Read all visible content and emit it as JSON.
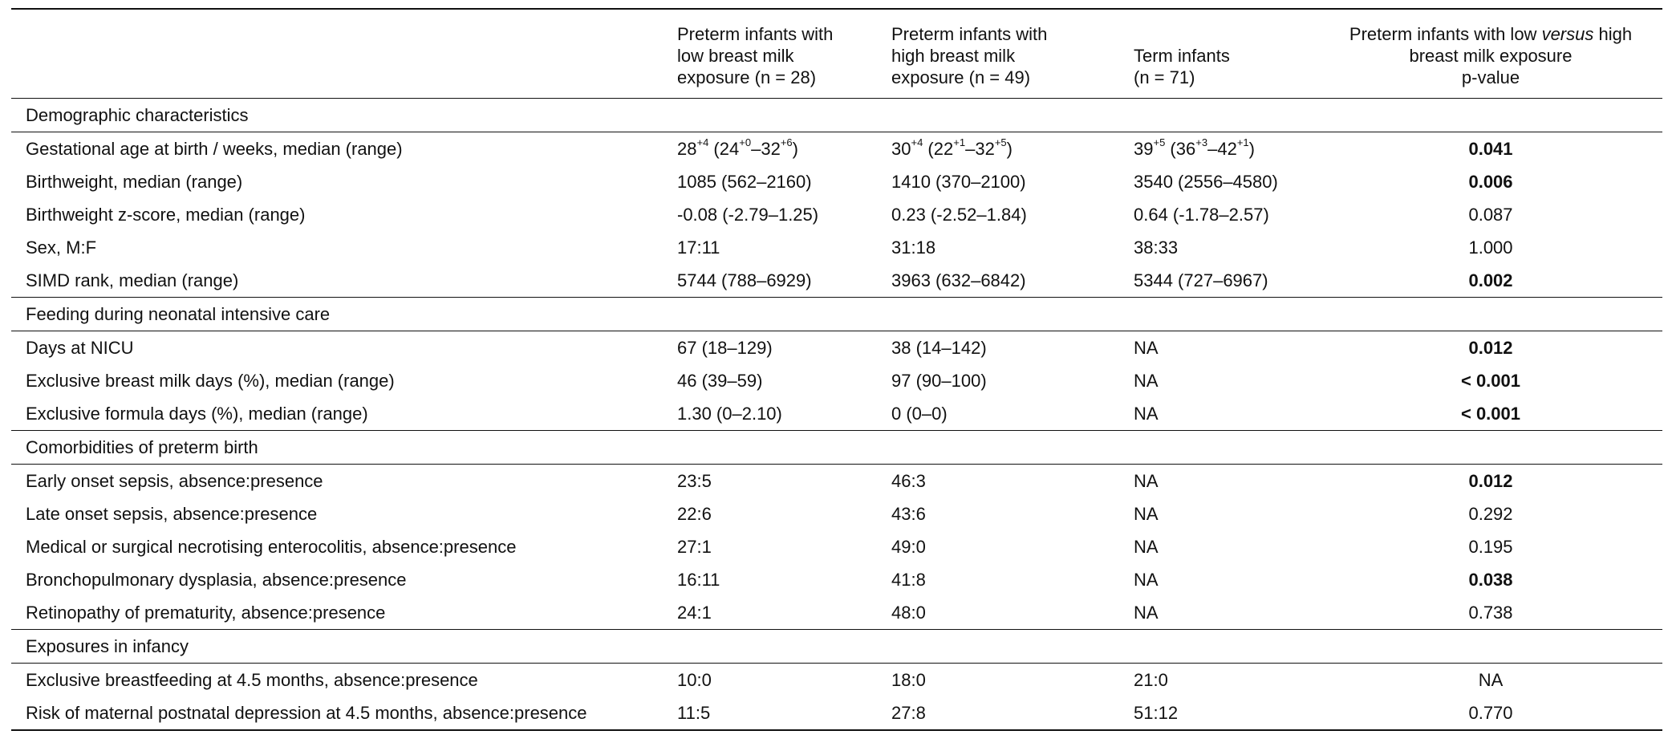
{
  "headers": {
    "col1": [
      "Preterm infants with",
      "low breast milk",
      "exposure (n = 28)"
    ],
    "col2": [
      "Preterm infants with",
      "high breast milk",
      "exposure (n = 49)"
    ],
    "col3": [
      "Term infants",
      "(n = 71)"
    ],
    "col4_pre": "Preterm infants with low ",
    "col4_italic": "versus",
    "col4_post": " high",
    "col4_line2": "breast milk exposure",
    "col4_line3": "p-value"
  },
  "sections": [
    {
      "title": "Demographic characteristics",
      "rows": [
        {
          "label": "Gestational age at birth / weeks, median (range)",
          "ga": true,
          "low": {
            "a": "28",
            "a_sup": "+4",
            "b": "24",
            "b_sup": "+0",
            "c": "32",
            "c_sup": "+6"
          },
          "high": {
            "a": "30",
            "a_sup": "+4",
            "b": "22",
            "b_sup": "+1",
            "c": "32",
            "c_sup": "+5"
          },
          "term": {
            "a": "39",
            "a_sup": "+5",
            "b": "36",
            "b_sup": "+3",
            "c": "42",
            "c_sup": "+1"
          },
          "p": "0.041",
          "bold": true
        },
        {
          "label": "Birthweight, median (range)",
          "low": "1085 (562–2160)",
          "high": "1410 (370–2100)",
          "term": "3540 (2556–4580)",
          "p": "0.006",
          "bold": true
        },
        {
          "label": "Birthweight z-score, median (range)",
          "low": "-0.08 (-2.79–1.25)",
          "high": "0.23 (-2.52–1.84)",
          "term": "0.64 (-1.78–2.57)",
          "p": "0.087",
          "bold": false
        },
        {
          "label": "Sex, M:F",
          "low": "17:11",
          "high": "31:18",
          "term": "38:33",
          "p": "1.000",
          "bold": false
        },
        {
          "label": "SIMD rank, median (range)",
          "low": "5744 (788–6929)",
          "high": "3963 (632–6842)",
          "term": "5344 (727–6967)",
          "p": "0.002",
          "bold": true
        }
      ]
    },
    {
      "title": "Feeding during neonatal intensive care",
      "rows": [
        {
          "label": "Days at NICU",
          "low": "67 (18–129)",
          "high": "38 (14–142)",
          "term": "NA",
          "p": "0.012",
          "bold": true
        },
        {
          "label": "Exclusive breast milk days (%), median (range)",
          "low": "46 (39–59)",
          "high": "97 (90–100)",
          "term": "NA",
          "p": "< 0.001",
          "bold": true
        },
        {
          "label": "Exclusive formula days (%), median (range)",
          "low": "1.30 (0–2.10)",
          "high": "0 (0–0)",
          "term": "NA",
          "p": "< 0.001",
          "bold": true
        }
      ]
    },
    {
      "title": "Comorbidities of preterm birth",
      "rows": [
        {
          "label": "Early onset sepsis, absence:presence",
          "low": "23:5",
          "high": "46:3",
          "term": "NA",
          "p": "0.012",
          "bold": true
        },
        {
          "label": "Late onset sepsis, absence:presence",
          "low": "22:6",
          "high": "43:6",
          "term": "NA",
          "p": "0.292",
          "bold": false
        },
        {
          "label": "Medical or surgical necrotising enterocolitis, absence:presence",
          "low": "27:1",
          "high": "49:0",
          "term": "NA",
          "p": "0.195",
          "bold": false
        },
        {
          "label": "Bronchopulmonary dysplasia, absence:presence",
          "low": "16:11",
          "high": "41:8",
          "term": "NA",
          "p": "0.038",
          "bold": true
        },
        {
          "label": "Retinopathy of prematurity, absence:presence",
          "low": "24:1",
          "high": "48:0",
          "term": "NA",
          "p": "0.738",
          "bold": false
        }
      ]
    },
    {
      "title": "Exposures in infancy",
      "rows": [
        {
          "label": "Exclusive breastfeeding at 4.5 months, absence:presence",
          "low": "10:0",
          "high": "18:0",
          "term": "21:0",
          "p": "NA",
          "bold": false
        },
        {
          "label": "Risk of maternal postnatal depression at 4.5 months, absence:presence",
          "low": "11:5",
          "high": "27:8",
          "term": "51:12",
          "p": "0.770",
          "bold": false
        }
      ]
    }
  ]
}
